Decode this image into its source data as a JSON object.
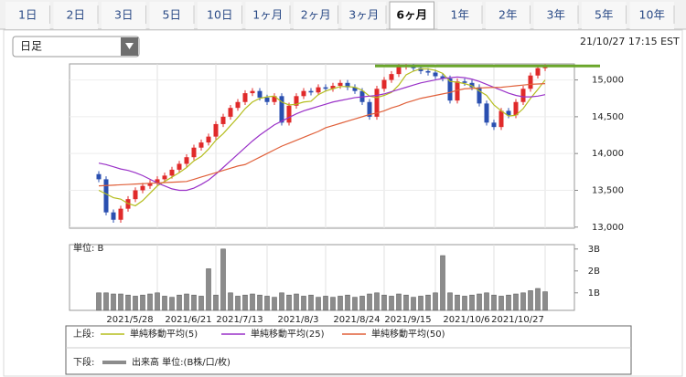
{
  "tabs": {
    "items": [
      "1日",
      "2日",
      "3日",
      "5日",
      "10日",
      "1ヶ月",
      "2ヶ月",
      "3ヶ月",
      "6ヶ月",
      "1年",
      "2年",
      "3年",
      "5年",
      "10年"
    ],
    "selected": "6ヶ月"
  },
  "period_select": "日足",
  "timestamp": "21/10/27 17:15 EST",
  "legend": {
    "upper_label": "上段:",
    "lower_label": "下段:"
  },
  "chart_data": [
    {
      "type": "candlestick",
      "categories": [
        null,
        null,
        null,
        null,
        null,
        null,
        null,
        null,
        "2021/5/28",
        null,
        null,
        null,
        null,
        null,
        null,
        null,
        "2021/6/21",
        null,
        null,
        null,
        null,
        null,
        null,
        "2021/7/13",
        null,
        null,
        null,
        null,
        null,
        null,
        null,
        "2021/8/3",
        null,
        null,
        null,
        null,
        null,
        null,
        null,
        "2021/8/24",
        null,
        null,
        null,
        null,
        null,
        null,
        "2021/9/15",
        null,
        null,
        null,
        null,
        null,
        null,
        null,
        "2021/10/6",
        null,
        null,
        null,
        null,
        null,
        null,
        "2021/10/27"
      ],
      "open": [
        13720,
        13650,
        13200,
        13100,
        13250,
        13380,
        13500,
        13560,
        13600,
        13650,
        13700,
        13780,
        13860,
        13950,
        14080,
        14150,
        14230,
        14400,
        14500,
        14620,
        14700,
        14820,
        14850,
        14760,
        14700,
        14780,
        14420,
        14650,
        14780,
        14850,
        14830,
        14900,
        14880,
        14920,
        14960,
        14900,
        14850,
        14700,
        14500,
        14880,
        15000,
        15080,
        15180,
        15200,
        15160,
        15120,
        15100,
        15050,
        15020,
        14720,
        14980,
        14960,
        14900,
        14680,
        14420,
        14360,
        14580,
        14520,
        14700,
        14880,
        15060,
        15160
      ],
      "high": [
        13760,
        13690,
        13240,
        13290,
        13420,
        13540,
        13600,
        13640,
        13690,
        13740,
        13820,
        13900,
        13990,
        14120,
        14190,
        14270,
        14440,
        14540,
        14660,
        14740,
        14860,
        14890,
        14890,
        14800,
        14820,
        14820,
        14690,
        14820,
        14890,
        14890,
        14940,
        14940,
        14960,
        15000,
        15000,
        14940,
        14890,
        14740,
        14920,
        15040,
        15120,
        15215,
        15215,
        15215,
        15200,
        15160,
        15140,
        15090,
        15060,
        15020,
        15020,
        15000,
        14940,
        14720,
        14460,
        14620,
        14620,
        14740,
        14920,
        15100,
        15200,
        15215
      ],
      "low": [
        13610,
        13160,
        13060,
        13060,
        13210,
        13340,
        13460,
        13520,
        13560,
        13610,
        13660,
        13740,
        13820,
        13910,
        14040,
        14110,
        14190,
        14360,
        14460,
        14580,
        14660,
        14780,
        14720,
        14660,
        14660,
        14380,
        14380,
        14610,
        14740,
        14790,
        14790,
        14840,
        14840,
        14880,
        14860,
        14810,
        14660,
        14460,
        14460,
        14840,
        14960,
        15040,
        15140,
        15120,
        15080,
        15060,
        15010,
        14980,
        14680,
        14680,
        14920,
        14860,
        14640,
        14380,
        14320,
        14320,
        14480,
        14480,
        14660,
        14840,
        15020,
        15120
      ],
      "close": [
        13650,
        13200,
        13100,
        13250,
        13380,
        13500,
        13560,
        13600,
        13650,
        13700,
        13780,
        13860,
        13950,
        14080,
        14150,
        14230,
        14400,
        14500,
        14620,
        14700,
        14820,
        14850,
        14760,
        14700,
        14780,
        14420,
        14650,
        14780,
        14850,
        14830,
        14900,
        14880,
        14920,
        14960,
        14900,
        14850,
        14700,
        14500,
        14880,
        15000,
        15080,
        15180,
        15200,
        15160,
        15120,
        15100,
        15050,
        15020,
        14720,
        14980,
        14960,
        14900,
        14680,
        14420,
        14360,
        14580,
        14520,
        14700,
        14880,
        15060,
        15160,
        15200
      ],
      "up_color": "#e02a2a",
      "down_color": "#2a4fb0",
      "series": [
        {
          "name": "単純移動平均(5)",
          "color": "#b5bd1e",
          "values": [
            13500,
            13450,
            13400,
            13380,
            13320,
            13290,
            13360,
            13460,
            13560,
            13620,
            13680,
            13740,
            13810,
            13900,
            13960,
            14060,
            14180,
            14270,
            14380,
            14490,
            14610,
            14700,
            14750,
            14770,
            14780,
            14700,
            14660,
            14670,
            14700,
            14710,
            14800,
            14850,
            14880,
            14910,
            14910,
            14900,
            14860,
            14780,
            14760,
            14790,
            14830,
            14930,
            15070,
            15120,
            15150,
            15150,
            15130,
            15090,
            14980,
            14970,
            14950,
            14920,
            14850,
            14790,
            14660,
            14580,
            14510,
            14520,
            14610,
            14750,
            14870,
            15000
          ]
        },
        {
          "name": "単純移動平均(25)",
          "color": "#9a32c8",
          "values": [
            13870,
            13850,
            13820,
            13790,
            13770,
            13740,
            13700,
            13650,
            13600,
            13560,
            13520,
            13500,
            13500,
            13530,
            13580,
            13640,
            13720,
            13810,
            13900,
            13990,
            14080,
            14170,
            14250,
            14320,
            14390,
            14440,
            14490,
            14540,
            14580,
            14610,
            14640,
            14670,
            14700,
            14720,
            14740,
            14760,
            14770,
            14780,
            14790,
            14810,
            14840,
            14870,
            14900,
            14930,
            14960,
            14980,
            15000,
            15020,
            15030,
            15040,
            15030,
            15010,
            14980,
            14940,
            14900,
            14860,
            14820,
            14790,
            14770,
            14770,
            14780,
            14800
          ]
        },
        {
          "name": "単純移動平均(50)",
          "color": "#e0603a",
          "values": [
            13560,
            13565,
            13570,
            13575,
            13580,
            13585,
            13590,
            13595,
            13600,
            13605,
            13610,
            13615,
            13620,
            13650,
            13680,
            13710,
            13740,
            13770,
            13800,
            13830,
            13850,
            13900,
            13950,
            14000,
            14050,
            14100,
            14140,
            14180,
            14220,
            14260,
            14300,
            14350,
            14380,
            14410,
            14440,
            14470,
            14500,
            14530,
            14550,
            14580,
            14620,
            14650,
            14690,
            14720,
            14750,
            14770,
            14790,
            14810,
            14830,
            14860,
            14880,
            14885,
            14890,
            14895,
            14898,
            14900,
            14910,
            14920,
            14930,
            14940,
            14945,
            14950
          ]
        }
      ],
      "reference_line": {
        "value": 15190,
        "color": "#6aa62a"
      },
      "ylim": [
        12985,
        15218
      ],
      "yticks": [
        {
          "value": 13000,
          "label": "13,000"
        },
        {
          "value": 13500,
          "label": "13,500"
        },
        {
          "value": 14000,
          "label": "14,000"
        },
        {
          "value": 14500,
          "label": "14,500"
        },
        {
          "value": 15000,
          "label": "15,000"
        }
      ],
      "grid": true
    },
    {
      "type": "bar",
      "name": "出来高 単位:(B株/口/枚)",
      "unit_label": "単位: B",
      "color": "#8c8c8c",
      "values": [
        1.0,
        1.0,
        0.95,
        0.95,
        0.9,
        0.85,
        0.9,
        0.95,
        1.0,
        0.85,
        0.8,
        0.9,
        0.95,
        0.9,
        0.85,
        2.1,
        0.9,
        3.0,
        1.0,
        0.85,
        0.9,
        0.95,
        0.9,
        0.85,
        0.8,
        1.0,
        0.9,
        0.95,
        0.85,
        0.9,
        0.8,
        0.85,
        0.8,
        0.85,
        0.9,
        0.8,
        0.85,
        0.95,
        1.0,
        0.9,
        0.85,
        0.95,
        0.9,
        0.8,
        0.85,
        0.9,
        1.0,
        2.7,
        1.0,
        0.9,
        0.85,
        0.9,
        0.95,
        1.0,
        0.9,
        0.85,
        0.9,
        0.95,
        1.0,
        1.1,
        1.2,
        1.05
      ],
      "ylim": [
        0.2,
        3.2
      ],
      "yticks": [
        {
          "value": 1,
          "label": "1B"
        },
        {
          "value": 2,
          "label": "2B"
        },
        {
          "value": 3,
          "label": "3B"
        }
      ]
    }
  ]
}
